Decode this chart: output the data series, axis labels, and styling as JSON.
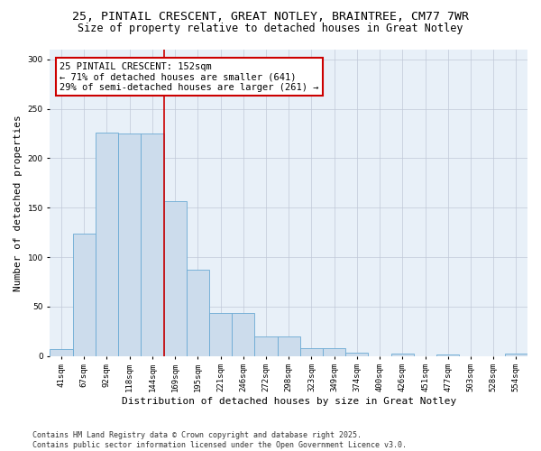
{
  "title_line1": "25, PINTAIL CRESCENT, GREAT NOTLEY, BRAINTREE, CM77 7WR",
  "title_line2": "Size of property relative to detached houses in Great Notley",
  "xlabel": "Distribution of detached houses by size in Great Notley",
  "ylabel": "Number of detached properties",
  "footnote": "Contains HM Land Registry data © Crown copyright and database right 2025.\nContains public sector information licensed under the Open Government Licence v3.0.",
  "bar_labels": [
    "41sqm",
    "67sqm",
    "92sqm",
    "118sqm",
    "144sqm",
    "169sqm",
    "195sqm",
    "221sqm",
    "246sqm",
    "272sqm",
    "298sqm",
    "323sqm",
    "349sqm",
    "374sqm",
    "400sqm",
    "426sqm",
    "451sqm",
    "477sqm",
    "503sqm",
    "528sqm",
    "554sqm"
  ],
  "bar_values": [
    7,
    124,
    226,
    225,
    225,
    157,
    87,
    43,
    43,
    20,
    20,
    8,
    8,
    3,
    0,
    2,
    0,
    1,
    0,
    0,
    2
  ],
  "bar_color": "#ccdcec",
  "bar_edge_color": "#6aaad4",
  "annotation_box_text": "25 PINTAIL CRESCENT: 152sqm\n← 71% of detached houses are smaller (641)\n29% of semi-detached houses are larger (261) →",
  "annotation_box_color": "#cc0000",
  "vline_x": 4.5,
  "vline_color": "#cc0000",
  "ylim": [
    0,
    310
  ],
  "yticks": [
    0,
    50,
    100,
    150,
    200,
    250,
    300
  ],
  "bg_color": "#ffffff",
  "plot_bg_color": "#e8f0f8",
  "grid_color": "#c0c8d8",
  "title_fontsize": 9.5,
  "subtitle_fontsize": 8.5,
  "axis_label_fontsize": 8,
  "tick_fontsize": 6.5,
  "annotation_fontsize": 7.5,
  "footnote_fontsize": 6
}
